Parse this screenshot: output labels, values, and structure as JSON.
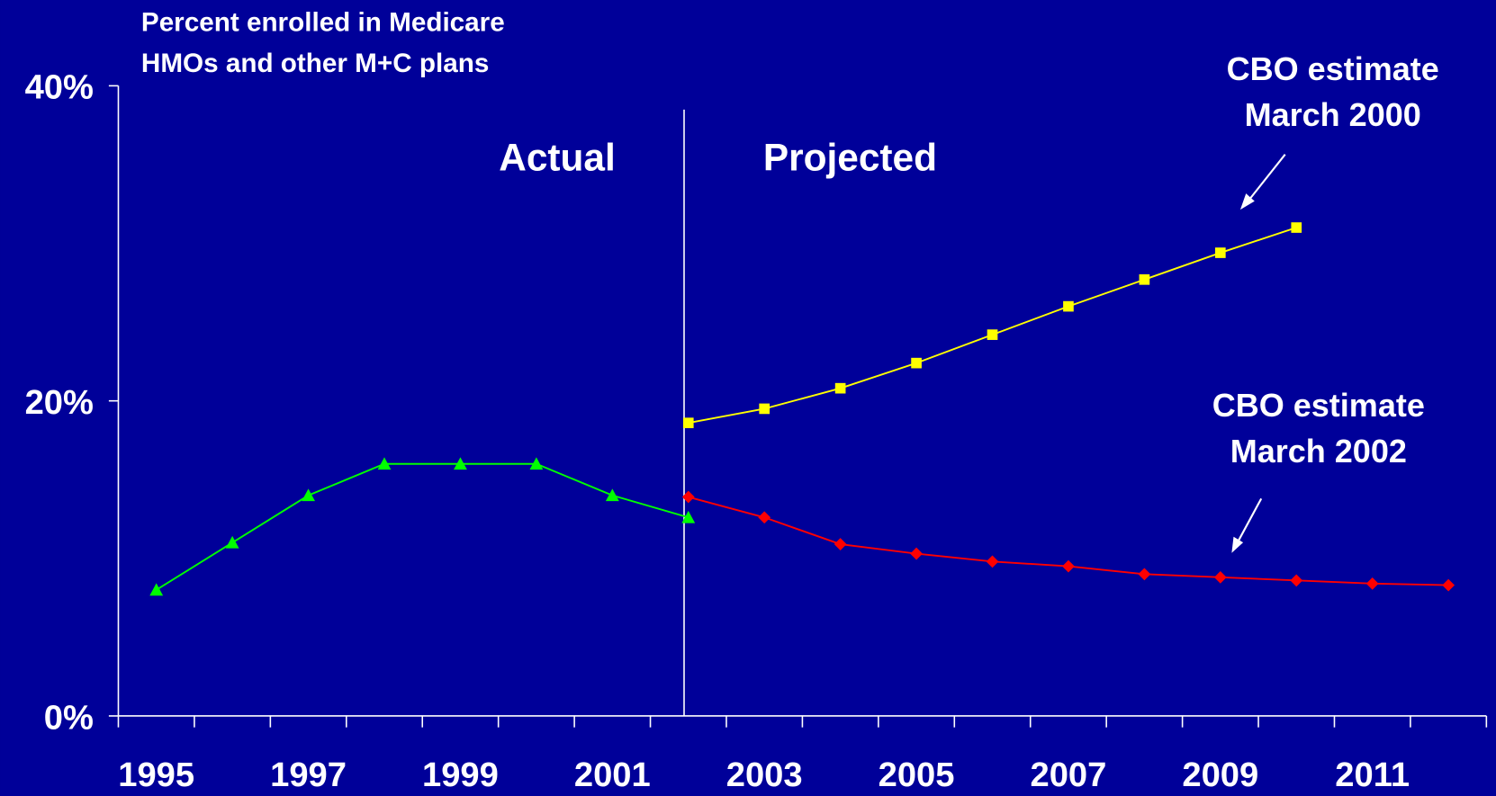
{
  "chart_data": {
    "type": "line",
    "ylabel": [
      "Percent enrolled in Medicare",
      "HMOs and other M+C plans"
    ],
    "categories": [
      "1995",
      null,
      "1997",
      null,
      "1999",
      null,
      "2001",
      null,
      "2003",
      null,
      "2005",
      null,
      "2007",
      null,
      "2009",
      null,
      "2011",
      null
    ],
    "ylim": [
      0,
      40
    ],
    "yticks": [
      {
        "value": 0,
        "label": "0%"
      },
      {
        "value": 20,
        "label": "20%"
      },
      {
        "value": 40,
        "label": "40%"
      }
    ],
    "series": [
      {
        "color": "#00ff00",
        "marker": "triangle",
        "values": [
          8,
          11,
          14,
          16,
          16,
          16,
          14,
          12.6,
          null,
          null,
          null,
          null,
          null,
          null,
          null,
          null,
          null,
          null
        ]
      },
      {
        "color": "#ffff00",
        "marker": "square",
        "values": [
          null,
          null,
          null,
          null,
          null,
          null,
          null,
          18.6,
          19.5,
          20.8,
          22.4,
          24.2,
          26,
          27.7,
          29.4,
          31,
          null,
          null
        ]
      },
      {
        "color": "#ff0000",
        "marker": "diamond",
        "values": [
          null,
          null,
          null,
          null,
          null,
          null,
          null,
          13.9,
          12.6,
          10.9,
          10.3,
          9.8,
          9.5,
          9,
          8.8,
          8.6,
          8.4,
          8.3
        ]
      }
    ],
    "annotations": [
      {
        "lines": [
          "Actual"
        ]
      },
      {
        "lines": [
          "Projected"
        ]
      },
      {
        "lines": [
          "CBO estimate",
          "March 2000"
        ]
      },
      {
        "lines": [
          "CBO estimate",
          "March 2002"
        ]
      }
    ]
  }
}
